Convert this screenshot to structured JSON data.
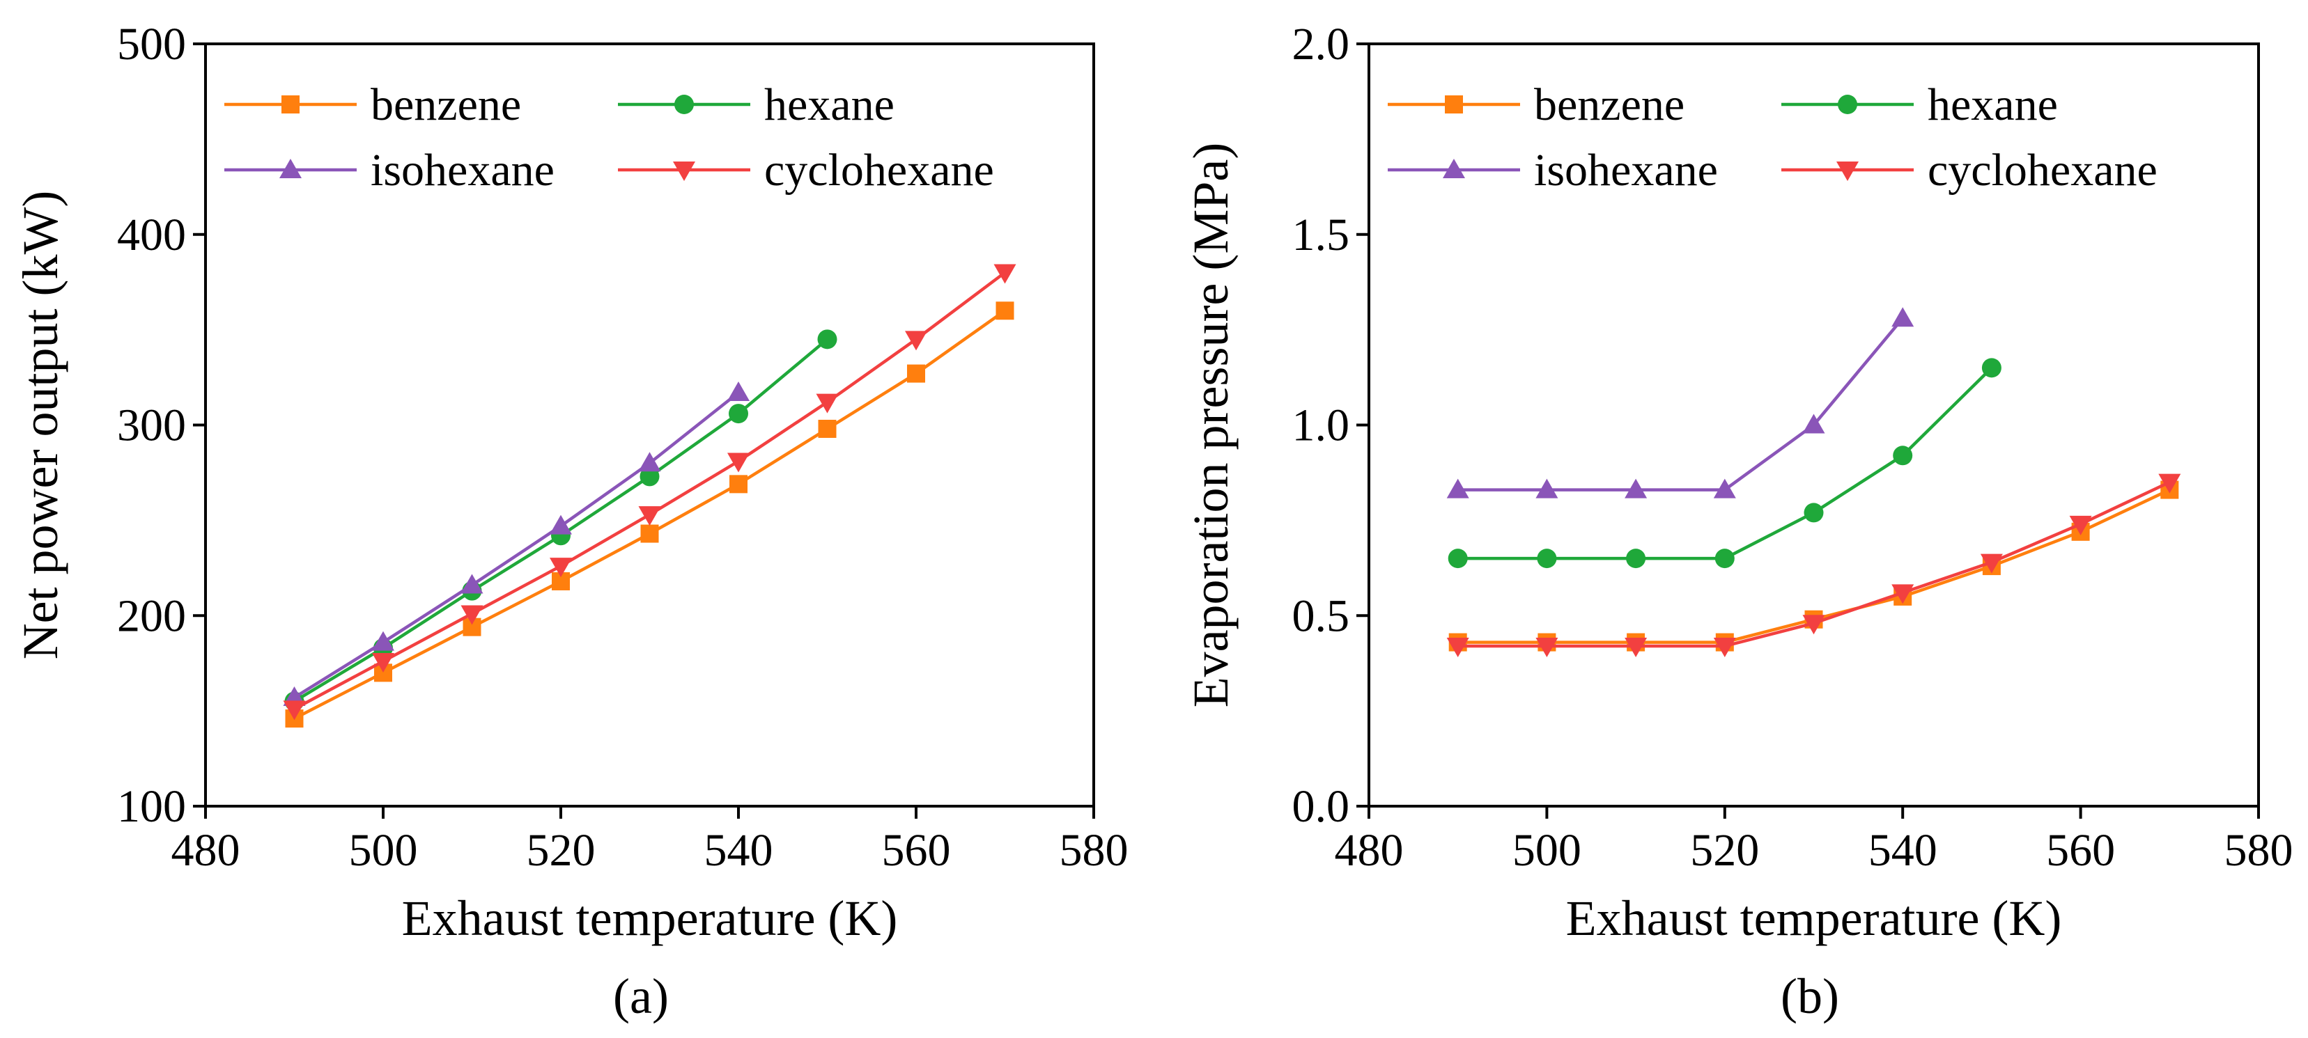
{
  "colors": {
    "benzene": "#ff7f0e",
    "hexane": "#1fa83a",
    "isohexane": "#8a55b8",
    "cyclohexane": "#f24040"
  },
  "chart_data": [
    {
      "type": "line",
      "caption": "(a)",
      "title": "",
      "xlabel": "Exhaust temperature (K)",
      "ylabel": "Net power output (kW)",
      "xlim": [
        480,
        580
      ],
      "ylim": [
        100,
        500
      ],
      "xticks": [
        480,
        500,
        520,
        540,
        560,
        580
      ],
      "yticks": [
        100,
        200,
        300,
        400,
        500
      ],
      "ytick_labels": [
        "100",
        "200",
        "300",
        "400",
        "500"
      ],
      "legend_location": "top-left",
      "series": [
        {
          "name": "benzene",
          "key": "benzene",
          "marker": "square",
          "x": [
            490,
            500,
            510,
            520,
            530,
            540,
            550,
            560,
            570
          ],
          "y": [
            146,
            170,
            194,
            218,
            243,
            269,
            298,
            327,
            360
          ]
        },
        {
          "name": "hexane",
          "key": "hexane",
          "marker": "circle",
          "x": [
            490,
            500,
            510,
            520,
            530,
            540,
            550
          ],
          "y": [
            155,
            183,
            213,
            242,
            273,
            306,
            345
          ]
        },
        {
          "name": "isohexane",
          "key": "isohexane",
          "marker": "triangle-up",
          "x": [
            490,
            500,
            510,
            520,
            530,
            540
          ],
          "y": [
            157,
            186,
            216,
            247,
            280,
            317
          ]
        },
        {
          "name": "cyclohexane",
          "key": "cyclohexane",
          "marker": "triangle-down",
          "x": [
            490,
            500,
            510,
            520,
            530,
            540,
            550,
            560,
            570
          ],
          "y": [
            151,
            176,
            201,
            226,
            253,
            281,
            312,
            345,
            380
          ]
        }
      ]
    },
    {
      "type": "line",
      "caption": "(b)",
      "title": "",
      "xlabel": "Exhaust temperature (K)",
      "ylabel": "Evaporation pressure (MPa)",
      "xlim": [
        480,
        580
      ],
      "ylim": [
        0.0,
        2.0
      ],
      "xticks": [
        480,
        500,
        520,
        540,
        560,
        580
      ],
      "yticks": [
        0.0,
        0.5,
        1.0,
        1.5,
        2.0
      ],
      "ytick_labels": [
        "0.0",
        "0.5",
        "1.0",
        "1.5",
        "2.0"
      ],
      "legend_location": "top",
      "series": [
        {
          "name": "benzene",
          "key": "benzene",
          "marker": "square",
          "x": [
            490,
            500,
            510,
            520,
            530,
            540,
            550,
            560,
            570
          ],
          "y": [
            0.43,
            0.43,
            0.43,
            0.43,
            0.49,
            0.55,
            0.63,
            0.72,
            0.83
          ]
        },
        {
          "name": "hexane",
          "key": "hexane",
          "marker": "circle",
          "x": [
            490,
            500,
            510,
            520,
            530,
            540,
            550
          ],
          "y": [
            0.65,
            0.65,
            0.65,
            0.65,
            0.77,
            0.92,
            1.15
          ]
        },
        {
          "name": "isohexane",
          "key": "isohexane",
          "marker": "triangle-up",
          "x": [
            490,
            500,
            510,
            520,
            530,
            540
          ],
          "y": [
            0.83,
            0.83,
            0.83,
            0.83,
            1.0,
            1.28
          ]
        },
        {
          "name": "cyclohexane",
          "key": "cyclohexane",
          "marker": "triangle-down",
          "x": [
            490,
            500,
            510,
            520,
            530,
            540,
            550,
            560,
            570
          ],
          "y": [
            0.42,
            0.42,
            0.42,
            0.42,
            0.48,
            0.56,
            0.64,
            0.74,
            0.85
          ]
        }
      ]
    }
  ]
}
